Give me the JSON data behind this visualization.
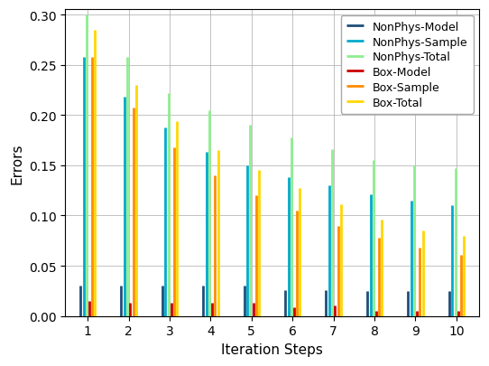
{
  "iterations": [
    1,
    2,
    3,
    4,
    5,
    6,
    7,
    8,
    9,
    10
  ],
  "nonphys_model": [
    0.03,
    0.03,
    0.03,
    0.03,
    0.03,
    0.026,
    0.026,
    0.025,
    0.025,
    0.025
  ],
  "nonphys_sample": [
    0.258,
    0.218,
    0.188,
    0.163,
    0.15,
    0.138,
    0.13,
    0.121,
    0.115,
    0.11
  ],
  "nonphys_total": [
    0.3,
    0.258,
    0.222,
    0.205,
    0.19,
    0.178,
    0.166,
    0.155,
    0.15,
    0.147
  ],
  "box_model": [
    0.015,
    0.013,
    0.013,
    0.013,
    0.013,
    0.009,
    0.01,
    0.005,
    0.005,
    0.005
  ],
  "box_sample": [
    0.258,
    0.207,
    0.168,
    0.14,
    0.12,
    0.105,
    0.09,
    0.078,
    0.068,
    0.061
  ],
  "box_total": [
    0.285,
    0.23,
    0.194,
    0.165,
    0.145,
    0.127,
    0.111,
    0.096,
    0.085,
    0.08
  ],
  "colors": {
    "nonphys_model": "#1f4e79",
    "nonphys_sample": "#00aacc",
    "nonphys_total": "#90ee90",
    "box_model": "#cc0000",
    "box_sample": "#ff8c00",
    "box_total": "#ffd700"
  },
  "ylabel": "Errors",
  "xlabel": "Iteration Steps",
  "ylim": [
    0,
    0.305
  ],
  "yticks": [
    0.0,
    0.05,
    0.1,
    0.15,
    0.2,
    0.25,
    0.3
  ],
  "legend_labels": [
    "NonPhys-Model",
    "NonPhys-Sample",
    "NonPhys-Total",
    "Box-Model",
    "Box-Sample",
    "Box-Total"
  ],
  "offsets": [
    -0.18,
    -0.1,
    -0.03,
    0.04,
    0.11,
    0.18
  ],
  "linewidth": 2.0,
  "figsize": [
    5.42,
    4.06
  ],
  "dpi": 100
}
